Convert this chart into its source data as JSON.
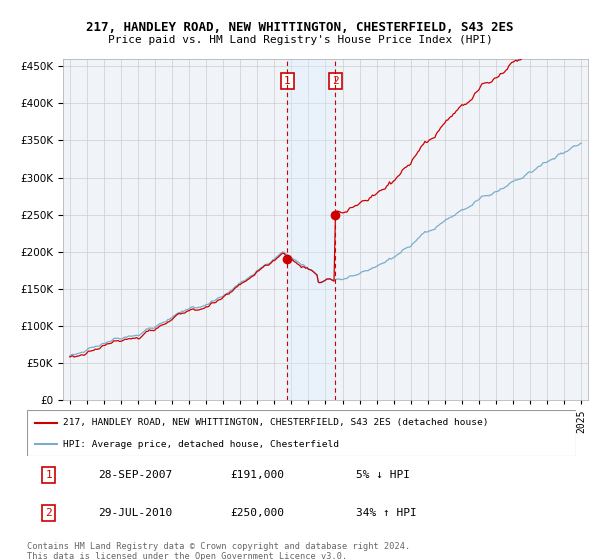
{
  "title": "217, HANDLEY ROAD, NEW WHITTINGTON, CHESTERFIELD, S43 2ES",
  "subtitle": "Price paid vs. HM Land Registry's House Price Index (HPI)",
  "legend_label_red": "217, HANDLEY ROAD, NEW WHITTINGTON, CHESTERFIELD, S43 2ES (detached house)",
  "legend_label_blue": "HPI: Average price, detached house, Chesterfield",
  "transaction1_date": "28-SEP-2007",
  "transaction1_price": 191000,
  "transaction1_hpi": "5% ↓ HPI",
  "transaction2_date": "29-JUL-2010",
  "transaction2_price": 250000,
  "transaction2_hpi": "34% ↑ HPI",
  "footnote": "Contains HM Land Registry data © Crown copyright and database right 2024.\nThis data is licensed under the Open Government Licence v3.0.",
  "red_color": "#cc0000",
  "blue_color": "#7aadcc",
  "shaded_color": "#ddeeff",
  "vline_color": "#cc0000",
  "grid_color": "#cccccc",
  "background_color": "#ffffff",
  "ylim": [
    0,
    460000
  ],
  "yticks": [
    0,
    50000,
    100000,
    150000,
    200000,
    250000,
    300000,
    350000,
    400000,
    450000
  ],
  "year_start": 1995,
  "year_end": 2025,
  "transaction1_year": 2007.75,
  "transaction2_year": 2010.58
}
